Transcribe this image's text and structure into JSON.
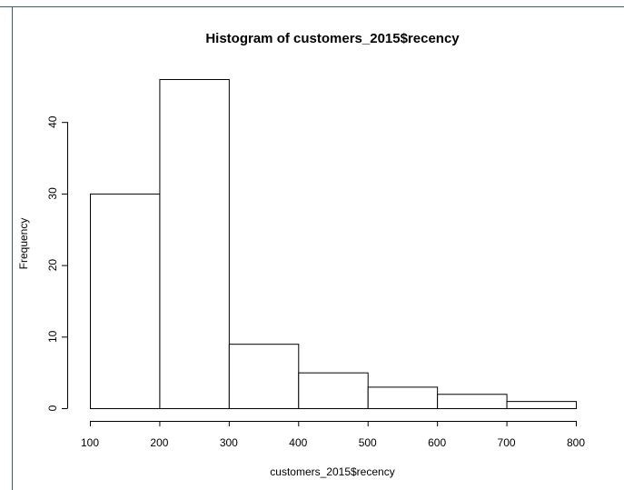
{
  "chart_data": {
    "type": "bar",
    "title": "Histogram of customers_2015$recency",
    "xlabel": "customers_2015$recency",
    "ylabel": "Frequency",
    "bins": [
      {
        "from": 100,
        "to": 200,
        "count": 30
      },
      {
        "from": 200,
        "to": 300,
        "count": 46
      },
      {
        "from": 300,
        "to": 400,
        "count": 9
      },
      {
        "from": 400,
        "to": 500,
        "count": 5
      },
      {
        "from": 500,
        "to": 600,
        "count": 3
      },
      {
        "from": 600,
        "to": 700,
        "count": 2
      },
      {
        "from": 700,
        "to": 800,
        "count": 1
      }
    ],
    "xlim": [
      100,
      800
    ],
    "ylim": [
      0,
      46
    ],
    "x_ticks": [
      100,
      200,
      300,
      400,
      500,
      600,
      700,
      800
    ],
    "y_ticks": [
      0,
      10,
      20,
      30,
      40
    ],
    "grid": false,
    "bar_fill": "#ffffff",
    "bar_stroke": "#000000",
    "frame_border": "#2f5f7a"
  }
}
